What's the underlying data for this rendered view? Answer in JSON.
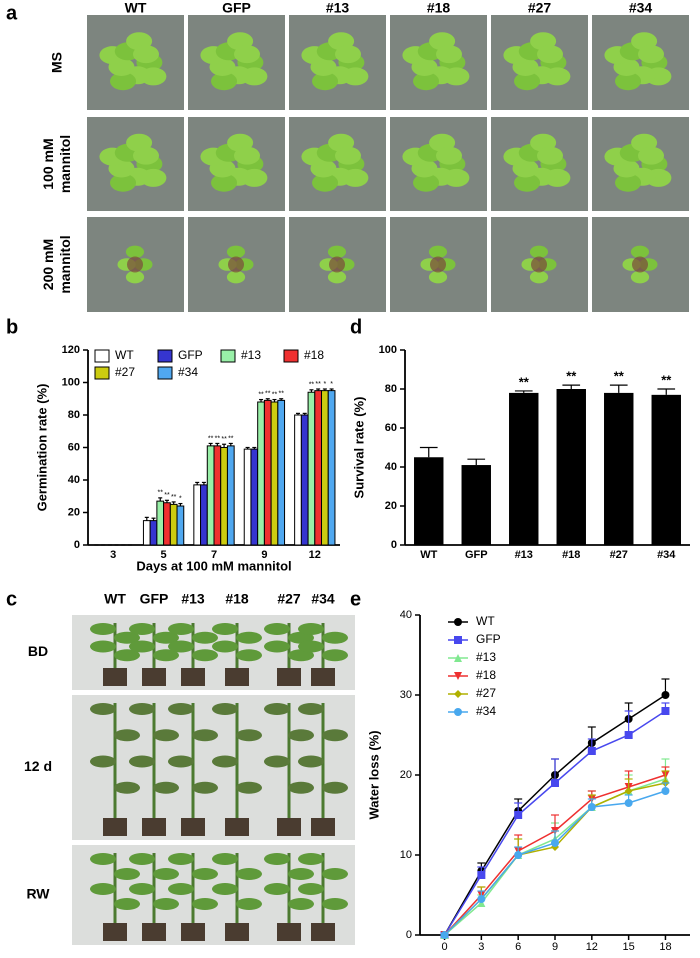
{
  "panel_a": {
    "label": "a",
    "columns": [
      "WT",
      "GFP",
      "#13",
      "#18",
      "#27",
      "#34"
    ],
    "rows": [
      [
        "MS"
      ],
      [
        "100 mM",
        "mannitol"
      ],
      [
        "200 mM",
        "mannitol"
      ]
    ]
  },
  "panel_c": {
    "label": "c",
    "columns": [
      "WT",
      "GFP",
      "#13",
      "#18",
      "#27",
      "#34"
    ],
    "rows": [
      "BD",
      "12 d",
      "RW"
    ]
  },
  "chart_data": [
    {
      "type": "bar",
      "label": "b",
      "categories": [
        "3",
        "5",
        "7",
        "9",
        "12"
      ],
      "xlabel": "Days at 100 mM mannitol",
      "ylabel": "Germination rate (%)",
      "ylim": [
        0,
        120
      ],
      "yticks": [
        0,
        20,
        40,
        60,
        80,
        100,
        120
      ],
      "series": [
        {
          "name": "WT",
          "color": "#ffffff",
          "values": [
            0,
            15,
            37,
            59,
            80
          ],
          "errors": [
            0,
            2,
            1.5,
            1,
            1
          ]
        },
        {
          "name": "GFP",
          "color": "#3535d0",
          "values": [
            0,
            15,
            37,
            59,
            80
          ],
          "errors": [
            0,
            1.5,
            1.5,
            1,
            1
          ]
        },
        {
          "name": "#13",
          "color": "#99f0a8",
          "values": [
            0,
            27,
            61,
            88,
            94
          ],
          "errors": [
            0,
            2,
            1.5,
            1.5,
            1.5
          ],
          "significance": [
            null,
            "**",
            "**",
            "**",
            "**"
          ]
        },
        {
          "name": "#18",
          "color": "#f03030",
          "values": [
            0,
            26,
            61,
            89,
            95
          ],
          "errors": [
            0,
            1.5,
            1.5,
            1,
            1
          ],
          "significance": [
            null,
            "**",
            "**",
            "**",
            "**"
          ]
        },
        {
          "name": "#27",
          "color": "#cccc10",
          "values": [
            0,
            25,
            60,
            88,
            95
          ],
          "errors": [
            0,
            1.5,
            2,
            1.5,
            1
          ],
          "significance": [
            null,
            "**",
            "**",
            "**",
            "*"
          ]
        },
        {
          "name": "#34",
          "color": "#50a8f0",
          "values": [
            0,
            24,
            61,
            89,
            95
          ],
          "errors": [
            0,
            1.5,
            1.5,
            1,
            1
          ],
          "significance": [
            null,
            "*",
            "**",
            "**",
            "*"
          ]
        }
      ]
    },
    {
      "type": "bar",
      "label": "d",
      "categories": [
        "WT",
        "GFP",
        "#13",
        "#18",
        "#27",
        "#34"
      ],
      "ylabel": "Survival  rate (%)",
      "ylim": [
        0,
        100
      ],
      "yticks": [
        0,
        20,
        40,
        60,
        80,
        100
      ],
      "color": "#000000",
      "values": [
        45,
        41,
        78,
        80,
        78,
        77
      ],
      "errors": [
        5,
        3,
        1,
        2,
        4,
        3
      ],
      "significance": [
        null,
        null,
        "**",
        "**",
        "**",
        "**"
      ]
    },
    {
      "type": "line",
      "label": "e",
      "ylabel": "Water loss (%)",
      "x": [
        0,
        3,
        6,
        9,
        12,
        15,
        18
      ],
      "xlim": [
        -2,
        20
      ],
      "xticks": [
        0,
        3,
        6,
        9,
        12,
        15,
        18
      ],
      "ylim": [
        0,
        40
      ],
      "yticks": [
        0,
        10,
        20,
        30,
        40
      ],
      "series": [
        {
          "name": "WT",
          "color": "#000000",
          "marker": "circle",
          "values": [
            0,
            8,
            15.5,
            20,
            24,
            27,
            30
          ],
          "errors": [
            0,
            1,
            1.5,
            2,
            2,
            2,
            2
          ]
        },
        {
          "name": "GFP",
          "color": "#4848ee",
          "marker": "square",
          "values": [
            0,
            7.5,
            15,
            19,
            23,
            25,
            28
          ],
          "errors": [
            0,
            1,
            1.5,
            3,
            1.5,
            3,
            1
          ]
        },
        {
          "name": "#13",
          "color": "#80e890",
          "marker": "triangle-up",
          "values": [
            0,
            4,
            10,
            12,
            16,
            18,
            19.5
          ],
          "errors": [
            0,
            1,
            2,
            2,
            2,
            2,
            2.5
          ]
        },
        {
          "name": "#18",
          "color": "#ee3030",
          "marker": "triangle-down",
          "values": [
            0,
            5,
            10.5,
            13,
            17,
            18.5,
            20
          ],
          "errors": [
            0,
            1,
            2,
            2,
            1,
            2,
            1
          ]
        },
        {
          "name": "#27",
          "color": "#b0b000",
          "marker": "diamond",
          "values": [
            0,
            4.5,
            10,
            11,
            16,
            18,
            19
          ],
          "errors": [
            0,
            1.5,
            2,
            2,
            1.5,
            1.5,
            1.5
          ]
        },
        {
          "name": "#34",
          "color": "#48a8ee",
          "marker": "circle",
          "values": [
            0,
            4.5,
            10,
            11.5,
            16,
            16.5,
            18
          ],
          "errors": [
            0,
            1,
            1,
            1.5,
            1,
            1,
            1
          ]
        }
      ]
    }
  ]
}
